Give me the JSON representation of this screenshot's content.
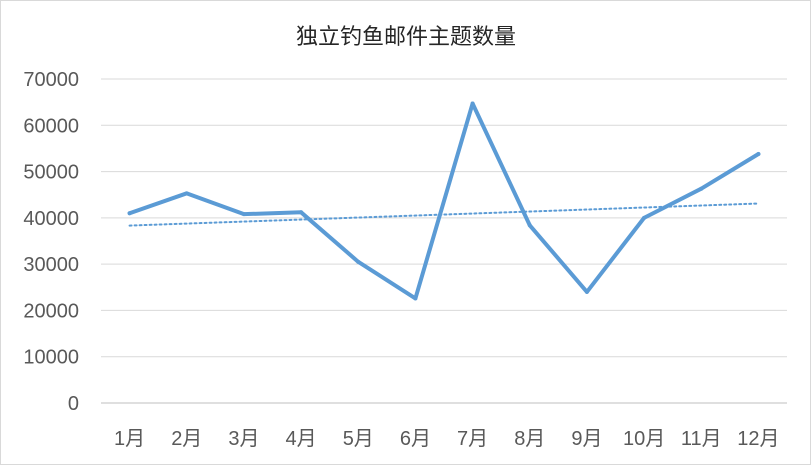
{
  "chart_data": {
    "type": "line",
    "title": "独立钓鱼邮件主题数量",
    "xlabel": "",
    "ylabel": "",
    "categories": [
      "1月",
      "2月",
      "3月",
      "4月",
      "5月",
      "6月",
      "7月",
      "8月",
      "9月",
      "10月",
      "11月",
      "12月"
    ],
    "y_ticks": [
      "0",
      "10000",
      "20000",
      "30000",
      "40000",
      "50000",
      "60000",
      "70000"
    ],
    "ylim": [
      0,
      70000
    ],
    "grid": true,
    "legend": "none",
    "series": [
      {
        "values": [
          41000,
          45300,
          40800,
          41200,
          30500,
          22600,
          64700,
          38400,
          24000,
          40000,
          46300,
          53800
        ],
        "color": "#5b9bd5",
        "style": "solid"
      }
    ],
    "trendline": {
      "type": "linear",
      "style": "dotted",
      "color": "#5b9bd5"
    }
  }
}
